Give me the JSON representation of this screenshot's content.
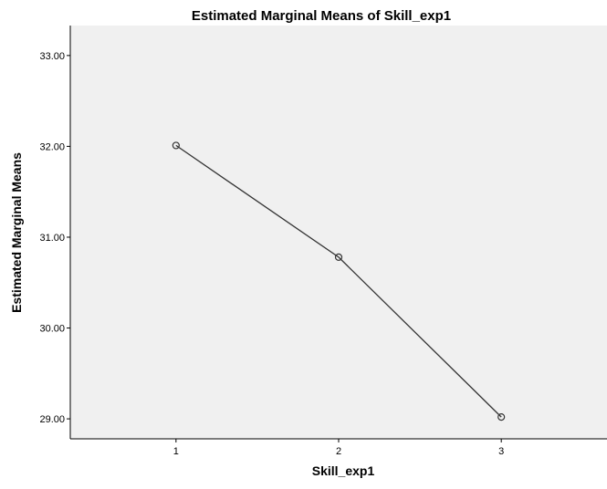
{
  "chart_data": {
    "type": "line",
    "title": "Estimated Marginal Means of Skill_exp1",
    "xlabel": "Skill_exp1",
    "ylabel": "Estimated Marginal Means",
    "x": [
      1,
      2,
      3
    ],
    "x_tick_labels": [
      "1",
      "2",
      "3"
    ],
    "xlim": [
      0.35,
      3.65
    ],
    "y_ticks": [
      29.0,
      30.0,
      31.0,
      32.0,
      33.0
    ],
    "y_tick_labels": [
      "29.00",
      "30.00",
      "31.00",
      "32.00",
      "33.00"
    ],
    "ylim": [
      28.78,
      33.33
    ],
    "series": [
      {
        "values": [
          32.01,
          30.78,
          29.02
        ],
        "marker": "circle",
        "color": "#333333"
      }
    ],
    "plot_background": "#f0f0f0",
    "grid": false,
    "legend": "none"
  }
}
